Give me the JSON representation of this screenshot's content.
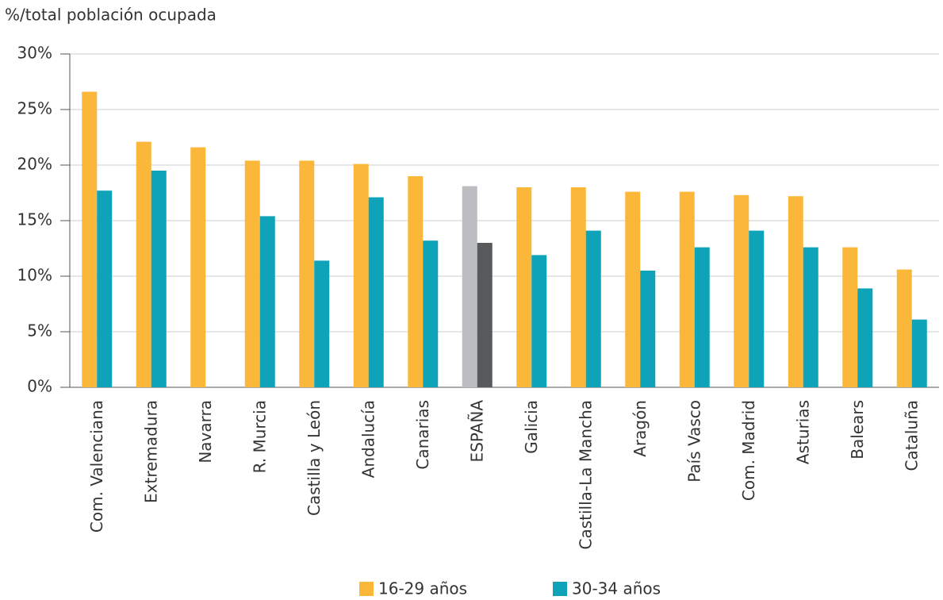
{
  "chart_data": {
    "type": "bar",
    "y_axis_label": "%/total población ocupada",
    "categories": [
      "Com. Valenciana",
      "Extremadura",
      "Navarra",
      "R. Murcia",
      "Castilla y León",
      "Andalucía",
      "Canarias",
      "ESPAÑA",
      "Galicia",
      "Castilla-La Mancha",
      "Aragón",
      "País Vasco",
      "Com. Madrid",
      "Asturias",
      "Balears",
      "Cataluña"
    ],
    "series": [
      {
        "name": "16-29 años",
        "color": "#fbb73a",
        "colors": [
          "#fbb73a",
          "#fbb73a",
          "#fbb73a",
          "#fbb73a",
          "#fbb73a",
          "#fbb73a",
          "#fbb73a",
          "#bcbdc0",
          "#fbb73a",
          "#fbb73a",
          "#fbb73a",
          "#fbb73a",
          "#fbb73a",
          "#fbb73a",
          "#fbb73a",
          "#fbb73a"
        ],
        "values": [
          26.6,
          22.1,
          21.6,
          20.4,
          20.4,
          20.1,
          19.0,
          18.1,
          18.0,
          18.0,
          17.6,
          17.6,
          17.3,
          17.2,
          12.6,
          10.6
        ]
      },
      {
        "name": "30-34 años",
        "color": "#0fa3b9",
        "colors": [
          "#0fa3b9",
          "#0fa3b9",
          "#0fa3b9",
          "#0fa3b9",
          "#0fa3b9",
          "#0fa3b9",
          "#0fa3b9",
          "#58595b",
          "#0fa3b9",
          "#0fa3b9",
          "#0fa3b9",
          "#0fa3b9",
          "#0fa3b9",
          "#0fa3b9",
          "#0fa3b9",
          "#0fa3b9"
        ],
        "values": [
          17.7,
          19.5,
          null,
          15.4,
          11.4,
          17.1,
          13.2,
          13.0,
          11.9,
          14.1,
          10.5,
          12.6,
          14.1,
          12.6,
          8.9,
          6.1
        ]
      }
    ],
    "ylim": [
      0,
      30
    ],
    "yticks": [
      {
        "value": 0,
        "label": "0%"
      },
      {
        "value": 5,
        "label": "5%"
      },
      {
        "value": 10,
        "label": "10%"
      },
      {
        "value": 15,
        "label": "15%"
      },
      {
        "value": 20,
        "label": "20%"
      },
      {
        "value": 25,
        "label": "25%"
      },
      {
        "value": 30,
        "label": "30%"
      }
    ],
    "grid": true,
    "legend": "bottom"
  }
}
